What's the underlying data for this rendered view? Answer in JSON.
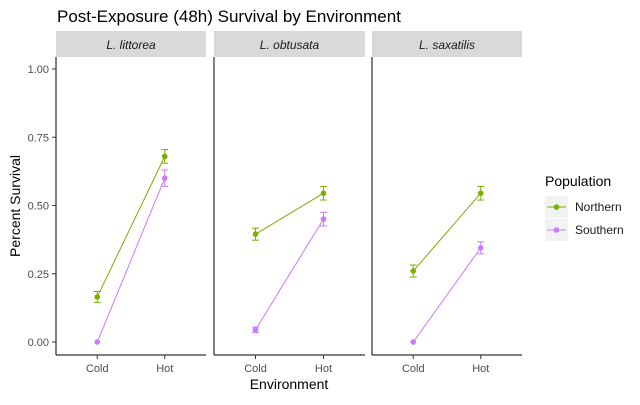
{
  "chart_data": {
    "type": "line",
    "title": "Post-Exposure (48h) Survival by Environment",
    "xlabel": "Environment",
    "ylabel": "Percent Survival",
    "ylim": [
      0,
      1
    ],
    "yticks": [
      "0.00",
      "0.25",
      "0.50",
      "0.75",
      "1.00"
    ],
    "categories": [
      "Cold",
      "Hot"
    ],
    "legend": {
      "title": "Population",
      "position": "right"
    },
    "facets": [
      {
        "label": "L. littorea",
        "series": [
          {
            "name": "Northern",
            "values": [
              0.165,
              0.68
            ],
            "err": [
              0.02,
              0.025
            ]
          },
          {
            "name": "Southern",
            "values": [
              0.0,
              0.6
            ],
            "err": [
              0.0,
              0.03
            ]
          }
        ]
      },
      {
        "label": "L. obtusata",
        "series": [
          {
            "name": "Northern",
            "values": [
              0.395,
              0.545
            ],
            "err": [
              0.022,
              0.025
            ]
          },
          {
            "name": "Southern",
            "values": [
              0.045,
              0.45
            ],
            "err": [
              0.01,
              0.025
            ]
          }
        ]
      },
      {
        "label": "L. saxatilis",
        "series": [
          {
            "name": "Northern",
            "values": [
              0.26,
              0.545
            ],
            "err": [
              0.022,
              0.025
            ]
          },
          {
            "name": "Southern",
            "values": [
              0.0,
              0.345
            ],
            "err": [
              0.0,
              0.022
            ]
          }
        ]
      }
    ],
    "colors": {
      "Northern": "#7CAE00",
      "Southern": "#C77CFF"
    },
    "grid": false
  }
}
